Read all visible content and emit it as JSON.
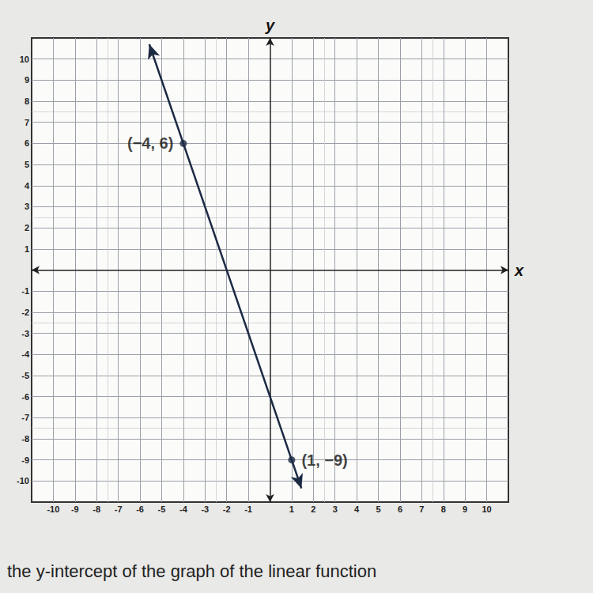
{
  "chart_data": {
    "type": "line",
    "title": "the y-intercept of the graph of the linear function",
    "x_label": "x",
    "y_label": "y",
    "xlim": [
      -11,
      11
    ],
    "ylim": [
      -11,
      11
    ],
    "xticks": [
      -10,
      -9,
      -8,
      -7,
      -6,
      -5,
      -4,
      -3,
      -2,
      -1,
      1,
      2,
      3,
      4,
      5,
      6,
      7,
      8,
      9,
      10
    ],
    "yticks": [
      -10,
      -9,
      -8,
      -7,
      -6,
      -5,
      -4,
      -3,
      -2,
      -1,
      1,
      2,
      3,
      4,
      5,
      6,
      7,
      8,
      9,
      10
    ],
    "grid": true,
    "series": [
      {
        "type": "line",
        "color": "#1c2a44",
        "x": [
          -5.57,
          -4,
          1,
          1.45
        ],
        "values": [
          10.7,
          6,
          -9,
          -10.35
        ],
        "marker": "arrow"
      },
      {
        "type": "scatter",
        "color": "#1c2a44",
        "x": [
          -4,
          1
        ],
        "values": [
          6,
          -9
        ],
        "value_labels": [
          "(−4, 6)",
          "(1, −9)"
        ],
        "data_labels": true,
        "marker": "circle"
      }
    ]
  }
}
